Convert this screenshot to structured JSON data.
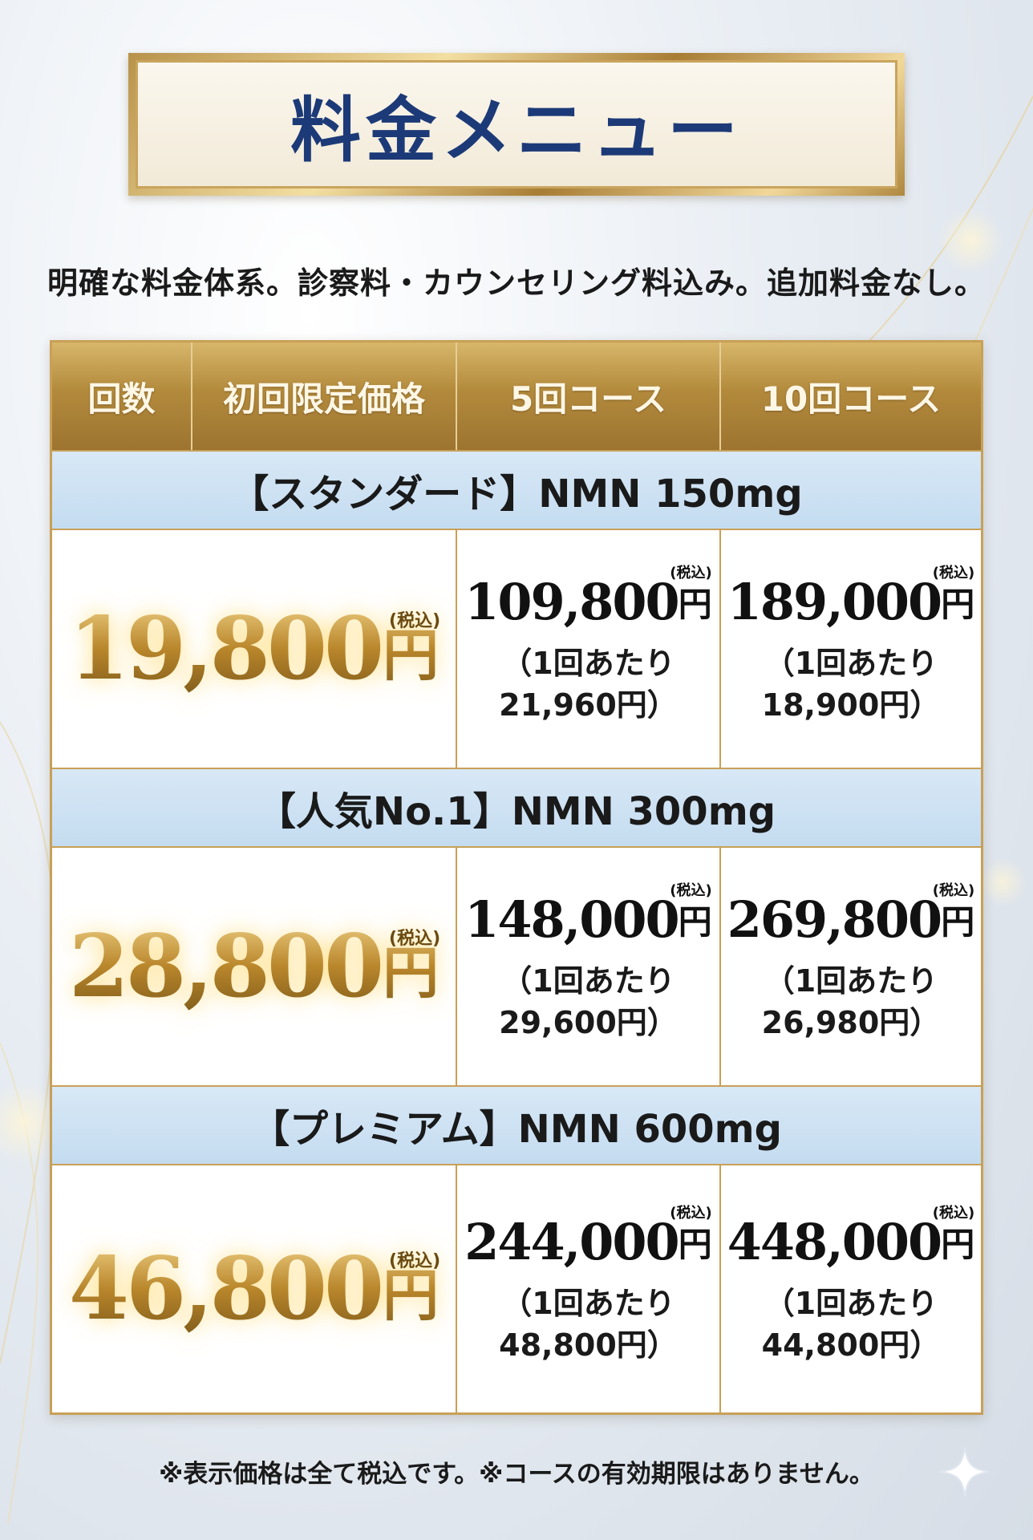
{
  "title": "料金メニュー",
  "subtitle": "明確な料金体系。診察料・カウンセリング料込み。追加料金なし。",
  "header": {
    "count": "回数",
    "first": "初回限定価格",
    "five": "5回コース",
    "ten": "10回コース"
  },
  "plans": [
    {
      "name": "【スタンダード】NMN 150mg",
      "first": {
        "amount": "19,800",
        "yen": "円",
        "tax": "(税込)"
      },
      "five": {
        "amount": "109,800",
        "yen": "円",
        "tax": "(税込)",
        "per1": "（1回あたり",
        "per2": "21,960円）"
      },
      "ten": {
        "amount": "189,000",
        "yen": "円",
        "tax": "(税込)",
        "per1": "（1回あたり",
        "per2": "18,900円）"
      }
    },
    {
      "name": "【人気No.1】NMN 300mg",
      "first": {
        "amount": "28,800",
        "yen": "円",
        "tax": "(税込)"
      },
      "five": {
        "amount": "148,000",
        "yen": "円",
        "tax": "(税込)",
        "per1": "（1回あたり",
        "per2": "29,600円）"
      },
      "ten": {
        "amount": "269,800",
        "yen": "円",
        "tax": "(税込)",
        "per1": "（1回あたり",
        "per2": "26,980円）"
      }
    },
    {
      "name": "【プレミアム】NMN 600mg",
      "first": {
        "amount": "46,800",
        "yen": "円",
        "tax": "(税込)"
      },
      "five": {
        "amount": "244,000",
        "yen": "円",
        "tax": "(税込)",
        "per1": "（1回あたり",
        "per2": "48,800円）"
      },
      "ten": {
        "amount": "448,000",
        "yen": "円",
        "tax": "(税込)",
        "per1": "（1回あたり",
        "per2": "44,800円）"
      }
    }
  ],
  "footnote": "※表示価格は全て税込です。※コースの有効期限はありません。",
  "colors": {
    "gold": "#b8924a",
    "navy": "#1d3a78",
    "band": "#c4dcf0"
  },
  "icons": [
    "sparkle-icon"
  ]
}
